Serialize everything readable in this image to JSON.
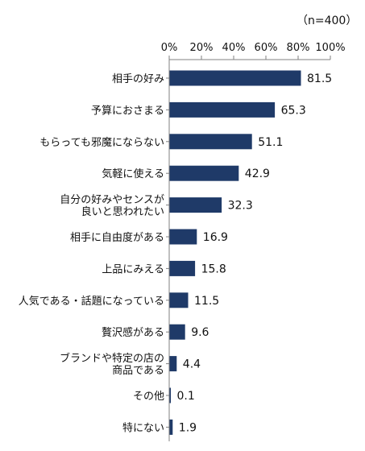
{
  "sample_note": "（n=400）",
  "chart_data": {
    "type": "bar",
    "orientation": "horizontal",
    "categories": [
      [
        "相手の好み"
      ],
      [
        "予算におさまる"
      ],
      [
        "もらっても邪魔にならない"
      ],
      [
        "気軽に使える"
      ],
      [
        "自分の好みやセンスが",
        "良いと思われたい"
      ],
      [
        "相手に自由度がある"
      ],
      [
        "上品にみえる"
      ],
      [
        "人気である・話題になっている"
      ],
      [
        "贅沢感がある"
      ],
      [
        "ブランドや特定の店の",
        "商品である"
      ],
      [
        "その他"
      ],
      [
        "特にない"
      ]
    ],
    "values": [
      81.5,
      65.3,
      51.1,
      42.9,
      32.3,
      16.9,
      15.8,
      11.5,
      9.6,
      4.4,
      0.1,
      1.9
    ],
    "value_labels": [
      "81.5",
      "65.3",
      "51.1",
      "42.9",
      "32.3",
      "16.9",
      "15.8",
      "11.5",
      "9.6",
      "4.4",
      "0.1",
      "1.9"
    ],
    "xlim": [
      0,
      100
    ],
    "xticks": [
      0,
      20,
      40,
      60,
      80,
      100
    ],
    "xtick_labels": [
      "0%",
      "20%",
      "40%",
      "60%",
      "80%",
      "100%"
    ],
    "xaxis_position": "top",
    "grid": false,
    "bar_color": "#1f3a68"
  }
}
